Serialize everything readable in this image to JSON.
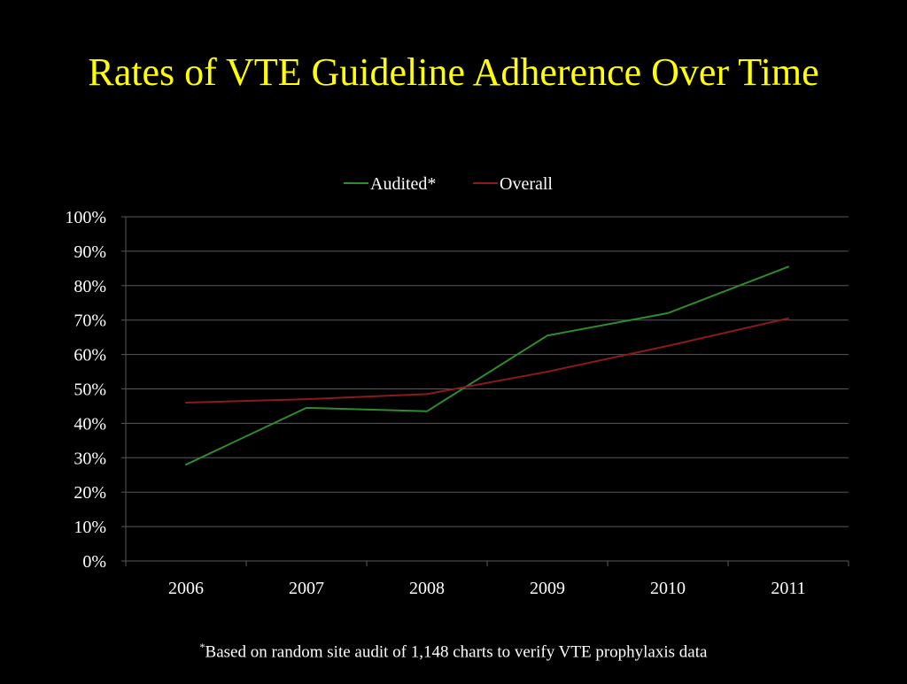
{
  "slide": {
    "title": "Rates of VTE Guideline Adherence Over Time"
  },
  "footnote": {
    "marker": "*",
    "text": "Based on random site audit of 1,148 charts to verify VTE prophylaxis data"
  },
  "colors": {
    "background": "#000000",
    "title": "#ffff00",
    "text": "#ffffff",
    "gridline": "#595959",
    "audited": "#2e8b2e",
    "overall": "#8b1a1a"
  },
  "chart_data": {
    "type": "line",
    "title": "",
    "xlabel": "",
    "ylabel": "",
    "categories": [
      "2006",
      "2007",
      "2008",
      "2009",
      "2010",
      "2011"
    ],
    "series": [
      {
        "name": "Audited*",
        "color": "#2e8b2e",
        "values": [
          28,
          44.5,
          43.5,
          65.5,
          72,
          85.5
        ]
      },
      {
        "name": "Overall",
        "color": "#8b1a1a",
        "values": [
          46,
          47,
          48.5,
          55,
          62.5,
          70.5
        ]
      }
    ],
    "ylim": [
      0,
      100
    ],
    "yticks": [
      0,
      10,
      20,
      30,
      40,
      50,
      60,
      70,
      80,
      90,
      100
    ],
    "ytick_labels": [
      "0%",
      "10%",
      "20%",
      "30%",
      "40%",
      "50%",
      "60%",
      "70%",
      "80%",
      "90%",
      "100%"
    ],
    "grid": true,
    "legend_position": "top-center"
  }
}
